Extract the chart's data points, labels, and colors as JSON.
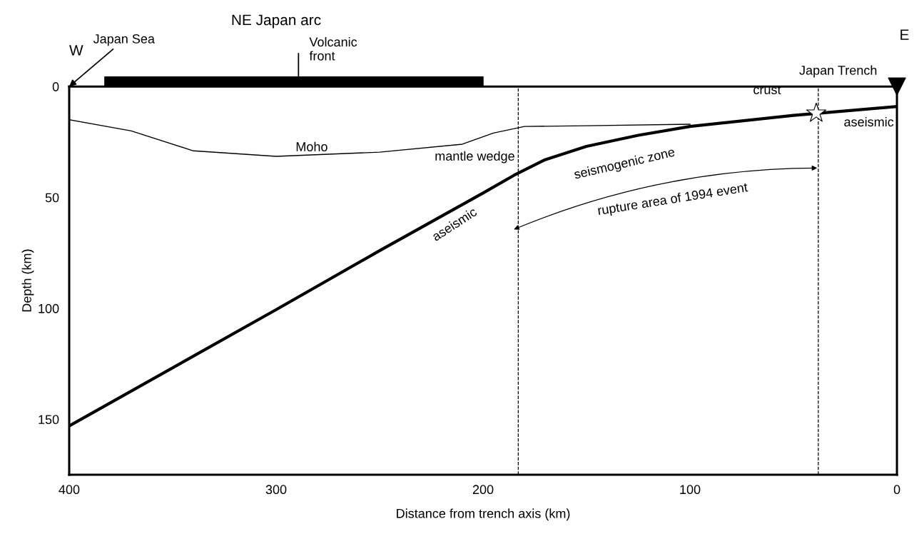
{
  "chart_data": {
    "type": "line",
    "title": "NE Japan arc",
    "xlabel": "Distance from trench axis (km)",
    "ylabel": "Depth (km)",
    "xlim": [
      400,
      0
    ],
    "xticks": [
      400,
      300,
      200,
      100,
      0
    ],
    "ylim": [
      175,
      0
    ],
    "yticks": [
      0,
      50,
      100,
      150
    ],
    "grid": false,
    "legend": false,
    "series": [
      {
        "color": "#000000",
        "x": [
          400,
          300,
          250,
          200,
          185,
          170,
          150,
          125,
          100,
          50,
          0
        ],
        "values": [
          153,
          100.6,
          74,
          48,
          40,
          33,
          27,
          22,
          18,
          13,
          9
        ]
      },
      {
        "color": "#000000",
        "x": [
          400,
          370,
          340,
          300,
          250,
          210,
          195,
          180,
          150,
          100
        ],
        "values": [
          15,
          20,
          29,
          31.5,
          29.6,
          26,
          21,
          18,
          17.7,
          17
        ]
      },
      {
        "type": "scatter",
        "color": "#ffffff",
        "marker": "star",
        "x": [
          39
        ],
        "values": [
          12
        ]
      },
      {
        "type": "scatter",
        "color": "#000000",
        "marker": "triangle",
        "x": [
          0
        ],
        "values": [
          0
        ]
      }
    ],
    "ref_lines": [
      {
        "axis": "x",
        "value": 183,
        "line_style": "dashed",
        "color": "#000000"
      },
      {
        "axis": "x",
        "value": 38,
        "line_style": "dashed",
        "color": "#000000"
      }
    ],
    "annotations": [
      "W",
      "E",
      "Japan Sea",
      "Volcanic\nfront",
      "Japan Trench",
      "crust",
      "Moho",
      "mantle wedge",
      "seismogenic zone",
      "aseismic",
      "aseismic",
      "rupture area of 1994 event"
    ]
  }
}
